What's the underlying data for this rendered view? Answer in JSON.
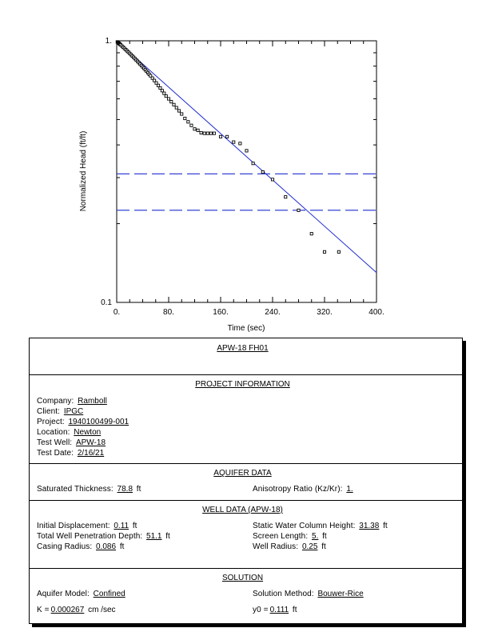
{
  "chart_data": {
    "type": "scatter",
    "xlabel": "Time  (sec)",
    "ylabel": "Normalized Head (ft/ft)",
    "xlim": [
      0,
      400
    ],
    "ylim": [
      0.1,
      1
    ],
    "yscale": "log",
    "x_ticks": [
      "0.",
      "80.",
      "160.",
      "240.",
      "320.",
      "400."
    ],
    "x_tick_values": [
      0,
      80,
      160,
      240,
      320,
      400
    ],
    "y_ticks": [
      "1.",
      "0.1"
    ],
    "y_tick_values": [
      1,
      0.1
    ],
    "points": [
      [
        1,
        0.99
      ],
      [
        2,
        0.985
      ],
      [
        3,
        0.98
      ],
      [
        4,
        0.975
      ],
      [
        5,
        0.97
      ],
      [
        6,
        0.965
      ],
      [
        8,
        0.955
      ],
      [
        10,
        0.945
      ],
      [
        12,
        0.935
      ],
      [
        14,
        0.925
      ],
      [
        16,
        0.915
      ],
      [
        18,
        0.905
      ],
      [
        20,
        0.895
      ],
      [
        22,
        0.885
      ],
      [
        24,
        0.875
      ],
      [
        26,
        0.865
      ],
      [
        28,
        0.855
      ],
      [
        30,
        0.845
      ],
      [
        32,
        0.835
      ],
      [
        34,
        0.825
      ],
      [
        36,
        0.815
      ],
      [
        38,
        0.805
      ],
      [
        40,
        0.795
      ],
      [
        42,
        0.785
      ],
      [
        44,
        0.775
      ],
      [
        46,
        0.765
      ],
      [
        48,
        0.755
      ],
      [
        50,
        0.745
      ],
      [
        52,
        0.735
      ],
      [
        55,
        0.72
      ],
      [
        58,
        0.705
      ],
      [
        61,
        0.69
      ],
      [
        64,
        0.675
      ],
      [
        67,
        0.66
      ],
      [
        70,
        0.645
      ],
      [
        73,
        0.63
      ],
      [
        76,
        0.615
      ],
      [
        80,
        0.6
      ],
      [
        84,
        0.585
      ],
      [
        88,
        0.57
      ],
      [
        92,
        0.555
      ],
      [
        96,
        0.54
      ],
      [
        100,
        0.525
      ],
      [
        105,
        0.505
      ],
      [
        110,
        0.49
      ],
      [
        115,
        0.475
      ],
      [
        120,
        0.46
      ],
      [
        125,
        0.455
      ],
      [
        130,
        0.445
      ],
      [
        135,
        0.443
      ],
      [
        140,
        0.443
      ],
      [
        145,
        0.443
      ],
      [
        150,
        0.443
      ],
      [
        160,
        0.43
      ],
      [
        170,
        0.43
      ],
      [
        180,
        0.41
      ],
      [
        190,
        0.405
      ],
      [
        200,
        0.38
      ],
      [
        210,
        0.34
      ],
      [
        225,
        0.315
      ],
      [
        240,
        0.295
      ],
      [
        260,
        0.253
      ],
      [
        280,
        0.225
      ],
      [
        300,
        0.183
      ],
      [
        320,
        0.156
      ],
      [
        342,
        0.156
      ]
    ],
    "fit_line": {
      "x": [
        0,
        400
      ],
      "y": [
        1.0,
        0.13
      ]
    },
    "h_lines": [
      0.31,
      0.225
    ],
    "grid": false
  },
  "report": {
    "title": "APW-18  FH01",
    "project_section_title": "PROJECT  INFORMATION",
    "company_label": "Company:",
    "company_value": "Ramboll",
    "client_label": "Client:",
    "client_value": "IPGC",
    "project_label": "Project:",
    "project_value": "1940100499-001",
    "location_label": "Location:",
    "location_value": "Newton",
    "test_well_label": "Test Well:",
    "test_well_value": "APW-18",
    "test_date_label": "Test Date:",
    "test_date_value": "2/16/21",
    "aquifer_section_title": "AQUIFER  DATA",
    "sat_thickness_label": "Saturated  Thickness:",
    "sat_thickness_value": "78.8",
    "sat_thickness_unit": "ft",
    "anisotropy_label": "Anisotropy  Ratio  (Kz/Kr):",
    "anisotropy_value": "1.",
    "well_section_title": "WELL  DATA  (APW-18)",
    "init_disp_label": "Initial  Displacement:",
    "init_disp_value": "0.11",
    "init_disp_unit": "ft",
    "static_col_label": "Static  Water  Column  Height:",
    "static_col_value": "31.38",
    "static_col_unit": "ft",
    "penetration_label": "Total  Well  Penetration  Depth:",
    "penetration_value": "51.1",
    "penetration_unit": "ft",
    "screen_len_label": "Screen  Length:",
    "screen_len_value": "5.",
    "screen_len_unit": "ft",
    "casing_label": "Casing  Radius:",
    "casing_value": "0.086",
    "casing_unit": "ft",
    "well_radius_label": "Well  Radius:",
    "well_radius_value": "0.25",
    "well_radius_unit": "ft",
    "solution_section_title": "SOLUTION",
    "aquifer_model_label": "Aquifer  Model:",
    "aquifer_model_value": "Confined",
    "solution_method_label": "Solution  Method:",
    "solution_method_value": "Bouwer-Rice",
    "k_label": "K  =",
    "k_value": "0.000267",
    "k_unit": "cm /sec",
    "y0_label": "y0 =",
    "y0_value": "0.111",
    "y0_unit": "ft"
  }
}
